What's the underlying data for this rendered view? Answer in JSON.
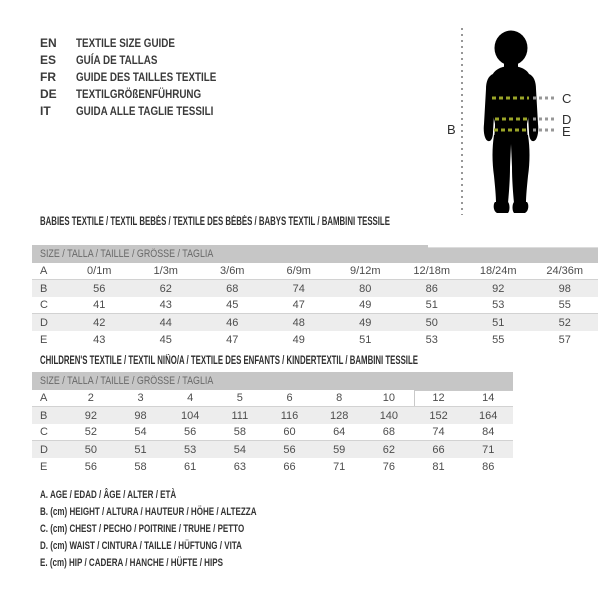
{
  "languages": [
    {
      "code": "EN",
      "label": "TEXTILE SIZE GUIDE"
    },
    {
      "code": "ES",
      "label": "GUÍA DE TALLAS"
    },
    {
      "code": "FR",
      "label": "GUIDE DES TAILLES TEXTILE"
    },
    {
      "code": "DE",
      "label": "TEXTILGRÖßENFÜHRUNG"
    },
    {
      "code": "IT",
      "label": "GUIDA ALLE TAGLIE TESSILI"
    }
  ],
  "figure": {
    "measure_labels": {
      "height": "B",
      "chest": "C",
      "waist": "D",
      "hip": "E"
    }
  },
  "babies_table": {
    "title": "BABIES TEXTILE / TEXTIL BEBÉS / TEXTILE DES BÉBÉS / BABYS TEXTIL / BAMBINI TESSILE",
    "header": "SIZE / TALLA / TAILLE / GRÖSSE / TAGLIA",
    "rows": [
      {
        "label": "A",
        "values": [
          "0/1m",
          "1/3m",
          "3/6m",
          "6/9m",
          "9/12m",
          "12/18m",
          "18/24m",
          "24/36m"
        ]
      },
      {
        "label": "B",
        "values": [
          "56",
          "62",
          "68",
          "74",
          "80",
          "86",
          "92",
          "98"
        ]
      },
      {
        "label": "C",
        "values": [
          "41",
          "43",
          "45",
          "47",
          "49",
          "51",
          "53",
          "55"
        ]
      },
      {
        "label": "D",
        "values": [
          "42",
          "44",
          "46",
          "48",
          "49",
          "50",
          "51",
          "52"
        ]
      },
      {
        "label": "E",
        "values": [
          "43",
          "45",
          "47",
          "49",
          "51",
          "53",
          "55",
          "57"
        ]
      }
    ]
  },
  "children_table": {
    "title": "CHILDREN'S TEXTILE / TEXTIL NIÑO/A / TEXTILE DES ENFANTS / KINDERTEXTIL / BAMBINI TESSILE",
    "header": "SIZE / TALLA / TAILLE / GRÖSSE / TAGLIA",
    "rows": [
      {
        "label": "A",
        "values": [
          "2",
          "3",
          "4",
          "5",
          "6",
          "8",
          "10",
          "12",
          "14"
        ]
      },
      {
        "label": "B",
        "values": [
          "92",
          "98",
          "104",
          "111",
          "116",
          "128",
          "140",
          "152",
          "164"
        ]
      },
      {
        "label": "C",
        "values": [
          "52",
          "54",
          "56",
          "58",
          "60",
          "64",
          "68",
          "74",
          "84"
        ]
      },
      {
        "label": "D",
        "values": [
          "50",
          "51",
          "53",
          "54",
          "56",
          "59",
          "62",
          "66",
          "71"
        ]
      },
      {
        "label": "E",
        "values": [
          "56",
          "58",
          "61",
          "63",
          "66",
          "71",
          "76",
          "81",
          "86"
        ]
      }
    ]
  },
  "legend": {
    "lines": [
      "A. AGE / EDAD / ÂGE / ALTER / ETÀ",
      "B. (cm) HEIGHT / ALTURA / HAUTEUR / HÖHE / ALTEZZA",
      "C. (cm) CHEST / PECHO / POITRINE / TRUHE / PETTO",
      "D. (cm) WAIST / CINTURA / TAILLE / HÜFTUNG / VITA",
      "E. (cm) HIP / CADERA / HANCHE / HÜFTE / HIPS"
    ]
  },
  "colors": {
    "table_header_bar": "#c6c6c6",
    "row_stripe": "#ededed",
    "body_dash": "#9aa428",
    "guide_dash": "#979797",
    "silhouette": "#000000"
  }
}
